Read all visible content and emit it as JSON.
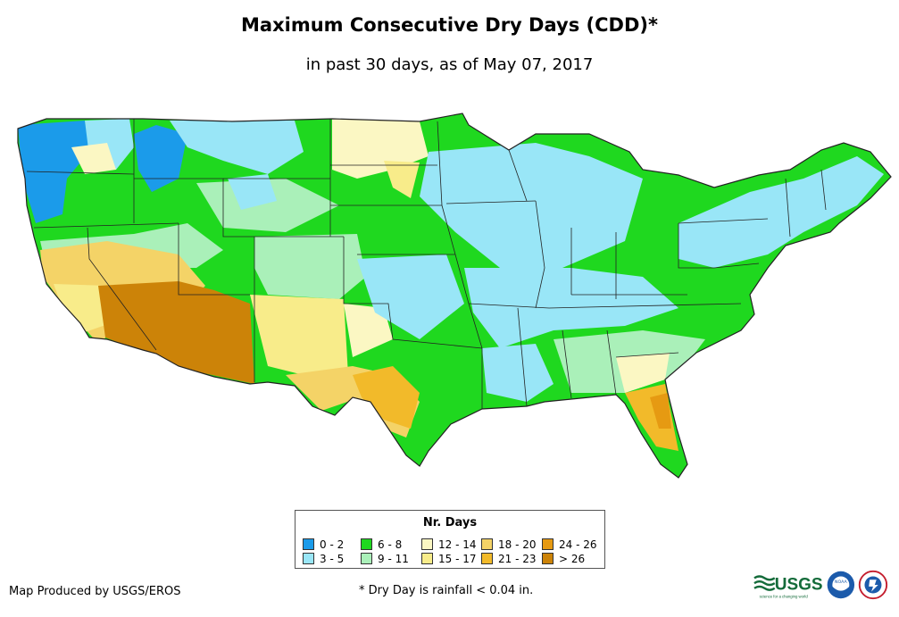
{
  "title": "Maximum Consecutive Dry Days (CDD)*",
  "subtitle": "in past 30 days, as of May 07, 2017",
  "legend": {
    "title": "Nr. Days",
    "items": [
      {
        "label": "0 - 2",
        "color": "#1b9bea"
      },
      {
        "label": "3 - 5",
        "color": "#99e6f7"
      },
      {
        "label": "6 - 8",
        "color": "#1fd81f"
      },
      {
        "label": "9 - 11",
        "color": "#aaf0b9"
      },
      {
        "label": "12 - 14",
        "color": "#fbf7c3"
      },
      {
        "label": "15 - 17",
        "color": "#f8ec8a"
      },
      {
        "label": "18 - 20",
        "color": "#f4d367"
      },
      {
        "label": "21 - 23",
        "color": "#f2ba2a"
      },
      {
        "label": "24 - 26",
        "color": "#e69a12"
      },
      {
        "label": "> 26",
        "color": "#cc8308"
      }
    ]
  },
  "credit": "Map Produced by USGS/EROS",
  "footnote": "* Dry Day is rainfall < 0.04 in.",
  "logos": {
    "usgs_text": "USGS",
    "usgs_tagline": "science for a changing world",
    "noaa_text": "NOAA"
  }
}
